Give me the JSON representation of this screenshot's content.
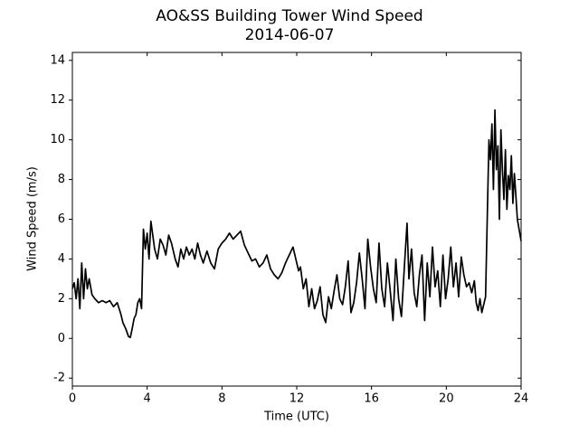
{
  "chart_data": {
    "type": "line",
    "title": "AO&SS Building Tower Wind Speed",
    "subtitle": "2014-06-07",
    "x_label": "Time (UTC)",
    "y_label": "Wind Speed (m/s)",
    "xlim": [
      0,
      24
    ],
    "xticks": [
      0,
      4,
      8,
      12,
      16,
      20,
      24
    ],
    "ylim": [
      -2.4,
      14.4
    ],
    "yticks": [
      -2,
      0,
      2,
      4,
      6,
      8,
      10,
      12,
      14
    ],
    "grid": false,
    "x": [
      0,
      0.1,
      0.2,
      0.3,
      0.4,
      0.5,
      0.6,
      0.7,
      0.8,
      0.9,
      1.05,
      1.2,
      1.4,
      1.6,
      1.8,
      2.0,
      2.2,
      2.4,
      2.5,
      2.6,
      2.7,
      2.85,
      3.0,
      3.1,
      3.2,
      3.3,
      3.4,
      3.5,
      3.6,
      3.7,
      3.8,
      3.9,
      4.0,
      4.1,
      4.2,
      4.4,
      4.55,
      4.7,
      4.85,
      5.0,
      5.15,
      5.3,
      5.5,
      5.65,
      5.8,
      5.95,
      6.1,
      6.25,
      6.4,
      6.55,
      6.7,
      6.85,
      7.0,
      7.2,
      7.4,
      7.6,
      7.8,
      8.0,
      8.2,
      8.4,
      8.6,
      8.8,
      9.0,
      9.2,
      9.4,
      9.6,
      9.8,
      10.0,
      10.2,
      10.4,
      10.6,
      10.8,
      11.0,
      11.2,
      11.4,
      11.6,
      11.8,
      11.95,
      12.1,
      12.2,
      12.35,
      12.5,
      12.65,
      12.8,
      12.95,
      13.1,
      13.25,
      13.4,
      13.55,
      13.7,
      13.85,
      14.0,
      14.15,
      14.3,
      14.45,
      14.6,
      14.75,
      14.9,
      15.05,
      15.2,
      15.35,
      15.5,
      15.65,
      15.8,
      15.95,
      16.1,
      16.25,
      16.4,
      16.55,
      16.7,
      16.85,
      17.0,
      17.15,
      17.3,
      17.45,
      17.6,
      17.75,
      17.9,
      18.0,
      18.14,
      18.28,
      18.42,
      18.56,
      18.7,
      18.84,
      18.98,
      19.12,
      19.26,
      19.4,
      19.54,
      19.68,
      19.82,
      19.96,
      20.1,
      20.24,
      20.38,
      20.52,
      20.66,
      20.8,
      20.94,
      21.08,
      21.22,
      21.36,
      21.5,
      21.6,
      21.7,
      21.8,
      21.9,
      22.0,
      22.1,
      22.2,
      22.28,
      22.36,
      22.44,
      22.52,
      22.6,
      22.68,
      22.76,
      22.84,
      22.92,
      23.0,
      23.08,
      23.16,
      23.24,
      23.32,
      23.4,
      23.48,
      23.56,
      23.64,
      23.72,
      23.8,
      24.0
    ],
    "series": [
      {
        "name": "Wind Speed",
        "color": "#000000",
        "values": [
          2.5,
          2.8,
          2.0,
          3.0,
          1.5,
          3.8,
          2.0,
          3.5,
          2.5,
          3.0,
          2.2,
          2.0,
          1.8,
          1.9,
          1.8,
          1.9,
          1.6,
          1.8,
          1.5,
          1.2,
          0.8,
          0.5,
          0.1,
          0.05,
          0.5,
          1.0,
          1.2,
          1.8,
          2.0,
          1.5,
          5.5,
          4.5,
          5.3,
          4.0,
          5.9,
          4.5,
          4.0,
          5.0,
          4.7,
          4.2,
          5.2,
          4.8,
          4.0,
          3.6,
          4.5,
          4.0,
          4.6,
          4.2,
          4.5,
          4.0,
          4.8,
          4.2,
          3.8,
          4.4,
          3.8,
          3.5,
          4.5,
          4.8,
          5.0,
          5.3,
          5.0,
          5.2,
          5.4,
          4.7,
          4.3,
          3.9,
          4.0,
          3.6,
          3.8,
          4.2,
          3.5,
          3.2,
          3.0,
          3.3,
          3.8,
          4.2,
          4.6,
          4.0,
          3.4,
          3.6,
          2.5,
          3.0,
          1.6,
          2.5,
          1.5,
          1.9,
          2.6,
          1.2,
          0.8,
          2.1,
          1.5,
          2.4,
          3.2,
          2.0,
          1.7,
          2.6,
          3.9,
          1.3,
          1.8,
          2.8,
          4.3,
          3.0,
          1.5,
          5.0,
          3.6,
          2.5,
          1.8,
          4.8,
          2.5,
          1.6,
          3.8,
          2.4,
          0.9,
          4.0,
          2.0,
          1.1,
          3.5,
          5.8,
          3.0,
          4.5,
          2.3,
          1.6,
          3.2,
          4.2,
          0.9,
          3.8,
          2.1,
          4.6,
          2.6,
          3.4,
          1.6,
          4.2,
          2.0,
          3.0,
          4.6,
          2.6,
          3.8,
          2.1,
          4.1,
          3.2,
          2.6,
          2.8,
          2.3,
          2.9,
          1.8,
          1.4,
          2.0,
          1.3,
          1.7,
          2.1,
          6.5,
          10.0,
          9.0,
          10.8,
          7.5,
          11.5,
          8.5,
          9.7,
          6.0,
          10.5,
          8.5,
          7.0,
          9.5,
          6.5,
          8.2,
          7.5,
          9.2,
          6.8,
          8.3,
          7.2,
          6.0,
          4.9
        ]
      }
    ]
  }
}
